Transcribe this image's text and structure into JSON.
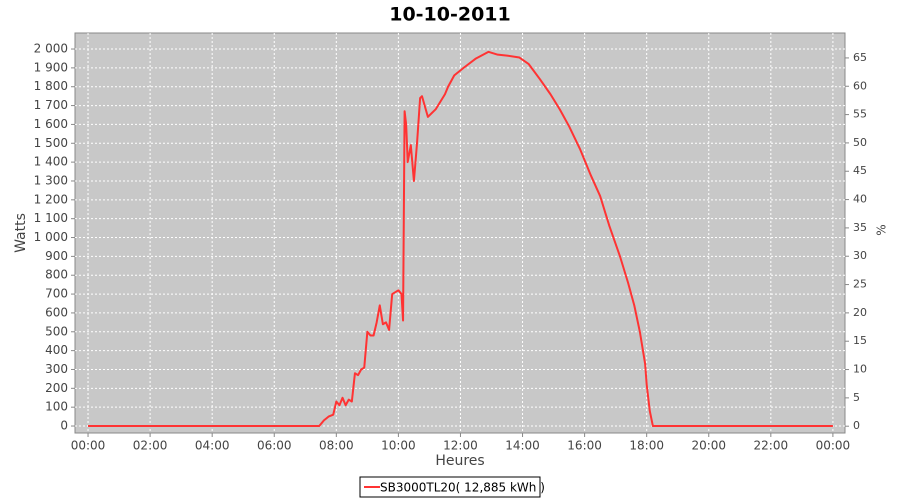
{
  "chart_data": {
    "type": "line",
    "title": "10-10-2011",
    "x_label": "Heures",
    "y_label": "Watts",
    "y2_label": "%",
    "x": [
      0,
      7.45,
      7.6,
      7.75,
      7.9,
      8.0,
      8.1,
      8.2,
      8.3,
      8.4,
      8.5,
      8.6,
      8.7,
      8.8,
      8.9,
      9.0,
      9.1,
      9.2,
      9.3,
      9.4,
      9.5,
      9.6,
      9.7,
      9.8,
      9.9,
      10.0,
      10.1,
      10.15,
      10.2,
      10.25,
      10.3,
      10.4,
      10.5,
      10.6,
      10.7,
      10.76,
      10.95,
      11.2,
      11.5,
      11.6,
      11.8,
      12.1,
      12.5,
      12.9,
      13.2,
      13.5,
      13.9,
      14.2,
      14.56,
      14.9,
      15.2,
      15.5,
      15.85,
      16.2,
      16.5,
      16.8,
      17.14,
      17.4,
      17.6,
      17.78,
      17.95,
      18.0,
      18.1,
      18.2,
      24
    ],
    "series": [
      {
        "name": "SB3000TL20( 12,885 kWh )",
        "color": "#ff3333",
        "values": [
          0,
          0,
          30,
          50,
          60,
          130,
          110,
          150,
          110,
          140,
          130,
          280,
          270,
          300,
          310,
          500,
          480,
          480,
          550,
          640,
          540,
          550,
          510,
          700,
          710,
          720,
          700,
          560,
          1670,
          1600,
          1400,
          1490,
          1300,
          1500,
          1740,
          1750,
          1640,
          1680,
          1760,
          1800,
          1860,
          1900,
          1950,
          1985,
          1970,
          1965,
          1955,
          1920,
          1840,
          1760,
          1680,
          1590,
          1470,
          1330,
          1220,
          1060,
          900,
          760,
          640,
          500,
          330,
          220,
          80,
          0,
          0
        ]
      }
    ],
    "xlim": [
      -0.42,
      24.39
    ],
    "xticks": [
      {
        "value": 0,
        "label": "00:00"
      },
      {
        "value": 2,
        "label": "02:00"
      },
      {
        "value": 4,
        "label": "04:00"
      },
      {
        "value": 6,
        "label": "06:00"
      },
      {
        "value": 8,
        "label": "08:00"
      },
      {
        "value": 10,
        "label": "10:00"
      },
      {
        "value": 12,
        "label": "12:00"
      },
      {
        "value": 14,
        "label": "14:00"
      },
      {
        "value": 16,
        "label": "16:00"
      },
      {
        "value": 18,
        "label": "18:00"
      },
      {
        "value": 20,
        "label": "20:00"
      },
      {
        "value": 22,
        "label": "22:00"
      },
      {
        "value": 24,
        "label": "00:00"
      }
    ],
    "ylim": [
      -37,
      2085
    ],
    "yticks": [
      0,
      100,
      200,
      300,
      400,
      500,
      600,
      700,
      800,
      900,
      {
        "value": 1000,
        "label": "1 000"
      },
      {
        "value": 1100,
        "label": "1 100"
      },
      {
        "value": 1200,
        "label": "1 200"
      },
      {
        "value": 1300,
        "label": "1 300"
      },
      {
        "value": 1400,
        "label": "1 400"
      },
      {
        "value": 1500,
        "label": "1 500"
      },
      {
        "value": 1600,
        "label": "1 600"
      },
      {
        "value": 1700,
        "label": "1 700"
      },
      {
        "value": 1800,
        "label": "1 800"
      },
      {
        "value": 1900,
        "label": "1 900"
      },
      {
        "value": 2000,
        "label": "2 000"
      }
    ],
    "y2lim": [
      -1.2,
      69.4
    ],
    "y2ticks": [
      0,
      5,
      10,
      15,
      20,
      25,
      30,
      35,
      40,
      45,
      50,
      55,
      60,
      65
    ],
    "grid": true
  }
}
